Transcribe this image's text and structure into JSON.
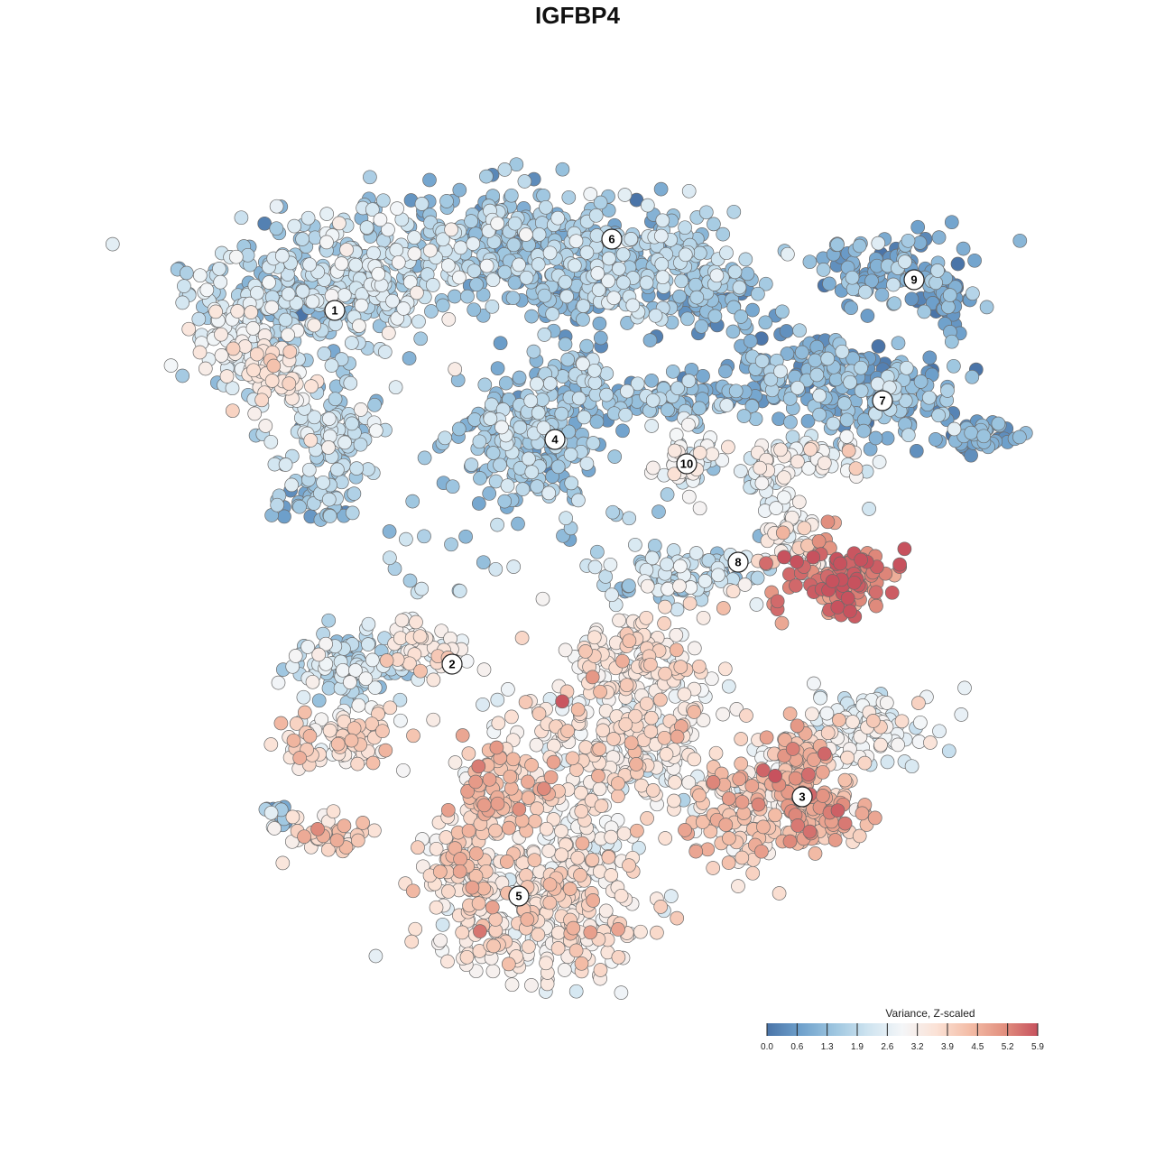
{
  "title": "IGFBP4",
  "chart_data": {
    "type": "scatter",
    "title": "IGFBP4",
    "legend": {
      "title": "Variance, Z-scaled",
      "placement": "bottom-right",
      "ticks": [
        "0.0",
        "0.6",
        "1.3",
        "1.9",
        "2.6",
        "3.2",
        "3.9",
        "4.5",
        "5.2",
        "5.9"
      ],
      "range": [
        0.0,
        5.9
      ],
      "colors": [
        "#4a74a8",
        "#6fa1cc",
        "#9ec6e0",
        "#cfe4f0",
        "#f4f6f8",
        "#fbe2d6",
        "#f3bca6",
        "#e2907f",
        "#c7525e"
      ]
    },
    "clusters": [
      {
        "label": "1",
        "level": 2.1
      },
      {
        "label": "2",
        "level": 2.9
      },
      {
        "label": "3",
        "level": 4.1
      },
      {
        "label": "4",
        "level": 1.4
      },
      {
        "label": "5",
        "level": 3.5
      },
      {
        "label": "6",
        "level": 1.5
      },
      {
        "label": "7",
        "level": 1.1
      },
      {
        "label": "8",
        "level": 3.0
      },
      {
        "label": "9",
        "level": 0.9
      },
      {
        "label": "10",
        "level": 2.6
      }
    ],
    "grid": false,
    "axes": false
  }
}
